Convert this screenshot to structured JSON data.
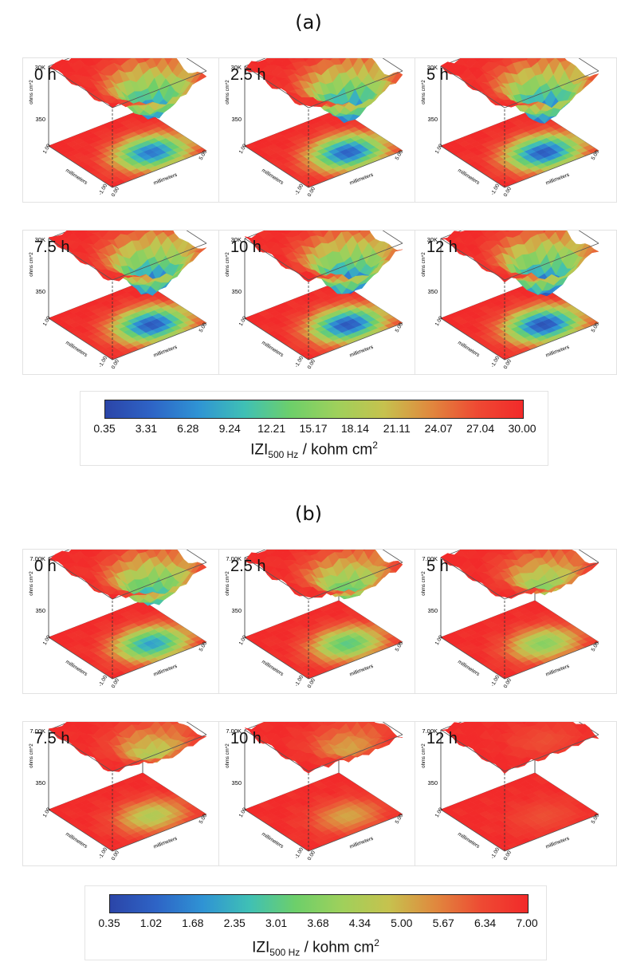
{
  "colors": {
    "colormap": [
      "#2b45a8",
      "#2e64c6",
      "#2f93d4",
      "#3fc0b5",
      "#6dcf6a",
      "#9fd05b",
      "#c6c24e",
      "#e0893e",
      "#ee4a33",
      "#f22a2a"
    ]
  },
  "chart_data": [
    {
      "id": "a",
      "type": "surface3d",
      "section_label": "(a)",
      "colorbar": {
        "min": 0.35,
        "max": 30.0,
        "ticks": [
          "0.35",
          "3.31",
          "6.28",
          "9.24",
          "12.21",
          "15.17",
          "18.14",
          "21.11",
          "24.07",
          "27.04",
          "30.00"
        ],
        "label_main": "IZI",
        "label_sub": "500 Hz",
        "label_unit": " / kohm cm",
        "label_sup": "2"
      },
      "axis": {
        "z_top": "30K",
        "z_bottom": "350",
        "z_label": "ohms cm^2",
        "x_label": "millimeters",
        "y_label": "millimeters",
        "x_ticks": [
          "1.00",
          "-1.00"
        ],
        "y_ticks": [
          "0.00",
          "5.00"
        ]
      },
      "panels": [
        {
          "time": "0 h",
          "damage": 0.85
        },
        {
          "time": "2.5 h",
          "damage": 0.9
        },
        {
          "time": "5 h",
          "damage": 0.92
        },
        {
          "time": "7.5 h",
          "damage": 0.93
        },
        {
          "time": "10 h",
          "damage": 0.93
        },
        {
          "time": "12 h",
          "damage": 0.95
        }
      ]
    },
    {
      "id": "b",
      "type": "surface3d",
      "section_label": "(b)",
      "colorbar": {
        "min": 0.35,
        "max": 7.0,
        "ticks": [
          "0.35",
          "1.02",
          "1.68",
          "2.35",
          "3.01",
          "3.68",
          "4.34",
          "5.00",
          "5.67",
          "6.34",
          "7.00"
        ],
        "label_main": "IZI",
        "label_sub": "500 Hz",
        "label_unit": " / kohm cm",
        "label_sup": "2"
      },
      "axis": {
        "z_top": "7.00K",
        "z_bottom": "350",
        "z_label": "ohms cm^2",
        "x_label": "millimeters",
        "y_label": "millimeters",
        "x_ticks": [
          "1.00",
          "-1.00"
        ],
        "y_ticks": [
          "0.00",
          "5.00"
        ]
      },
      "panels": [
        {
          "time": "0 h",
          "damage": 0.75
        },
        {
          "time": "2.5 h",
          "damage": 0.6
        },
        {
          "time": "5 h",
          "damage": 0.5
        },
        {
          "time": "7.5 h",
          "damage": 0.4
        },
        {
          "time": "10 h",
          "damage": 0.28
        },
        {
          "time": "12 h",
          "damage": 0.12
        }
      ]
    }
  ]
}
